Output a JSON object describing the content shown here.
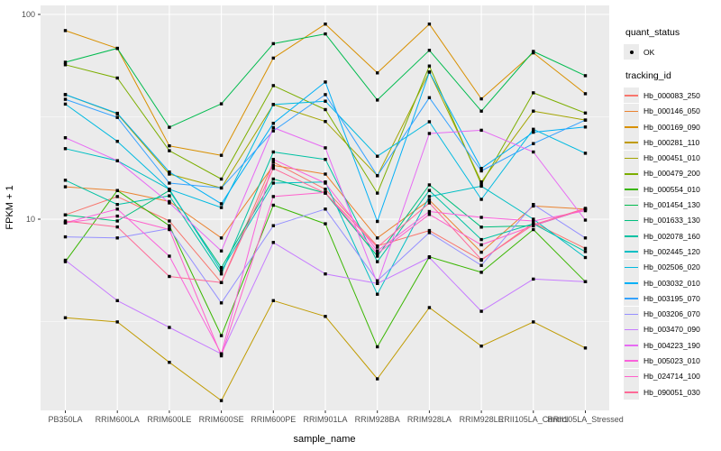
{
  "legend": {
    "quant_status_title": "quant_status",
    "quant_status_ok_label": "OK",
    "tracking_id_title": "tracking_id"
  },
  "colors": {
    "background": "#FFFFFF",
    "panel_background": "#EBEBEB",
    "gridline": "#FFFFFF",
    "axis_text": "#4D4D4D",
    "axis_title": "#000000",
    "tick_mark": "#333333",
    "legend_key_background": "#EBEBEB",
    "point": "#000000"
  },
  "chart_data": {
    "type": "line",
    "title": "",
    "xlabel": "sample_name",
    "ylabel": "FPKM + 1",
    "y_scale": "log10",
    "ylim": [
      1.15,
      110
    ],
    "y_major_ticks": [
      10,
      100
    ],
    "y_tick_labels": [
      "10",
      "100"
    ],
    "y_minor_gridlines": [
      3.162,
      31.623
    ],
    "grid": "on",
    "legend_position": "right",
    "point_color": "#000000",
    "point_status": "OK",
    "categories": [
      "PB350LA",
      "RRIM600LA",
      "RRIM600LE",
      "RRIM600SE",
      "RRIM600PE",
      "RRIM901LA",
      "RRIM928BA",
      "RRIM928LA",
      "RRIM928LE",
      "RRII105LA_Control",
      "RRII105LA_Stressed"
    ],
    "series": [
      {
        "name": "Hb_000083_250",
        "color": "#F8766D",
        "values": [
          10.5,
          12.9,
          9.8,
          4.9,
          19.0,
          14.0,
          7.4,
          8.8,
          6.3,
          9.6,
          7.2
        ]
      },
      {
        "name": "Hb_000146_050",
        "color": "#EA8331",
        "values": [
          14.4,
          13.8,
          12.2,
          8.1,
          18.3,
          16.6,
          8.1,
          12.4,
          6.9,
          11.6,
          11.2
        ]
      },
      {
        "name": "Hb_000169_090",
        "color": "#D89000",
        "values": [
          83.4,
          68.3,
          22.8,
          20.5,
          61.2,
          89.7,
          51.8,
          89.7,
          38.7,
          64.9,
          41.0
        ]
      },
      {
        "name": "Hb_000281_110",
        "color": "#C09B00",
        "values": [
          3.3,
          3.15,
          2.0,
          1.3,
          4.0,
          3.35,
          1.66,
          3.7,
          2.4,
          3.15,
          2.35
        ]
      },
      {
        "name": "Hb_000451_010",
        "color": "#A3A500",
        "values": [
          40.6,
          32.7,
          16.6,
          14.2,
          36.3,
          30.0,
          16.3,
          52.3,
          15.2,
          33.7,
          30.5
        ]
      },
      {
        "name": "Hb_000479_200",
        "color": "#7CAE00",
        "values": [
          56.8,
          48.9,
          21.6,
          15.7,
          44.9,
          34.3,
          13.4,
          56.0,
          14.8,
          41.4,
          33.0
        ]
      },
      {
        "name": "Hb_000554_010",
        "color": "#39B600",
        "values": [
          6.2,
          13.8,
          9.3,
          2.7,
          11.7,
          9.5,
          2.38,
          6.55,
          5.5,
          8.9,
          4.95
        ]
      },
      {
        "name": "Hb_001454_130",
        "color": "#00BB4E",
        "values": [
          58.4,
          68.3,
          28.1,
          36.6,
          72.0,
          80.3,
          38.2,
          66.8,
          33.7,
          66.0,
          50.2
        ]
      },
      {
        "name": "Hb_001633_130",
        "color": "#00BF7D",
        "values": [
          10.5,
          9.8,
          13.8,
          5.8,
          15.7,
          13.4,
          6.6,
          14.7,
          9.15,
          9.3,
          11.2
        ]
      },
      {
        "name": "Hb_002078_160",
        "color": "#00C1A3",
        "values": [
          15.5,
          11.8,
          13.0,
          5.4,
          21.3,
          19.6,
          6.2,
          13.8,
          7.95,
          9.5,
          6.95
        ]
      },
      {
        "name": "Hb_002445_120",
        "color": "#00BFC4",
        "values": [
          22.1,
          19.3,
          14.0,
          5.6,
          15.0,
          15.2,
          4.3,
          12.9,
          14.5,
          10.0,
          6.5
        ]
      },
      {
        "name": "Hb_002506_020",
        "color": "#00BAE0",
        "values": [
          36.5,
          24.0,
          14.0,
          11.4,
          36.3,
          37.7,
          20.3,
          29.9,
          12.5,
          27.5,
          21.0
        ]
      },
      {
        "name": "Hb_003032_010",
        "color": "#00B0F6",
        "values": [
          40.6,
          32.9,
          17.0,
          11.9,
          29.4,
          46.8,
          9.75,
          52.3,
          17.7,
          26.6,
          28.2
        ]
      },
      {
        "name": "Hb_003195_070",
        "color": "#35A2FF",
        "values": [
          38.5,
          31.4,
          15.0,
          14.2,
          27.0,
          40.6,
          16.3,
          39.2,
          17.2,
          23.4,
          30.5
        ]
      },
      {
        "name": "Hb_003206_070",
        "color": "#9590FF",
        "values": [
          8.2,
          8.1,
          9.0,
          3.9,
          9.3,
          11.2,
          5.0,
          8.6,
          5.95,
          11.8,
          8.1
        ]
      },
      {
        "name": "Hb_003470_090",
        "color": "#C77CFF",
        "values": [
          6.3,
          4.0,
          2.96,
          2.2,
          7.7,
          5.4,
          4.85,
          6.5,
          3.55,
          5.1,
          4.95
        ]
      },
      {
        "name": "Hb_004223_190",
        "color": "#E76BF3",
        "values": [
          25.0,
          19.3,
          12.0,
          7.0,
          28.0,
          22.3,
          4.85,
          26.2,
          27.2,
          21.3,
          9.9
        ]
      },
      {
        "name": "Hb_005023_010",
        "color": "#FA62DB",
        "values": [
          9.6,
          11.2,
          6.6,
          2.2,
          19.6,
          15.0,
          7.0,
          10.9,
          10.2,
          9.8,
          11.0
        ]
      },
      {
        "name": "Hb_024714_100",
        "color": "#FF61CC",
        "values": [
          9.6,
          10.35,
          8.9,
          2.15,
          12.9,
          13.5,
          6.8,
          10.55,
          7.5,
          9.3,
          11.2
        ]
      },
      {
        "name": "Hb_090051_030",
        "color": "#FF6A98",
        "values": [
          9.8,
          9.16,
          5.25,
          4.9,
          17.7,
          13.4,
          7.3,
          12.0,
          6.35,
          9.4,
          11.3
        ]
      }
    ]
  }
}
